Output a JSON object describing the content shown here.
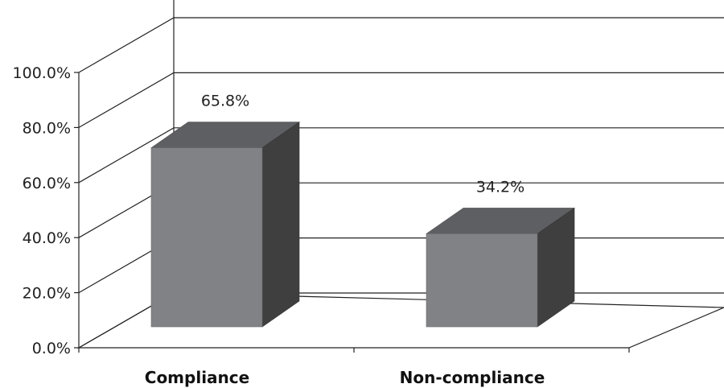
{
  "chart_data": {
    "type": "bar",
    "style": "3d-column",
    "categories": [
      "Compliance",
      "Non-compliance"
    ],
    "values": [
      65.8,
      34.2
    ],
    "data_labels": [
      "65.8%",
      "34.2%"
    ],
    "title": "",
    "xlabel": "",
    "ylabel": "",
    "ylim": [
      0,
      100
    ],
    "yticks": [
      "0.0%",
      "20.0%",
      "40.0%",
      "60.0%",
      "80.0%",
      "100.0%"
    ],
    "grid": true,
    "legend": "none",
    "colors": {
      "bar_front": "#818286",
      "bar_top": "#5e5f62",
      "bar_side": "#3f3f40",
      "grid_line": "#222222",
      "text": "#222222"
    }
  }
}
